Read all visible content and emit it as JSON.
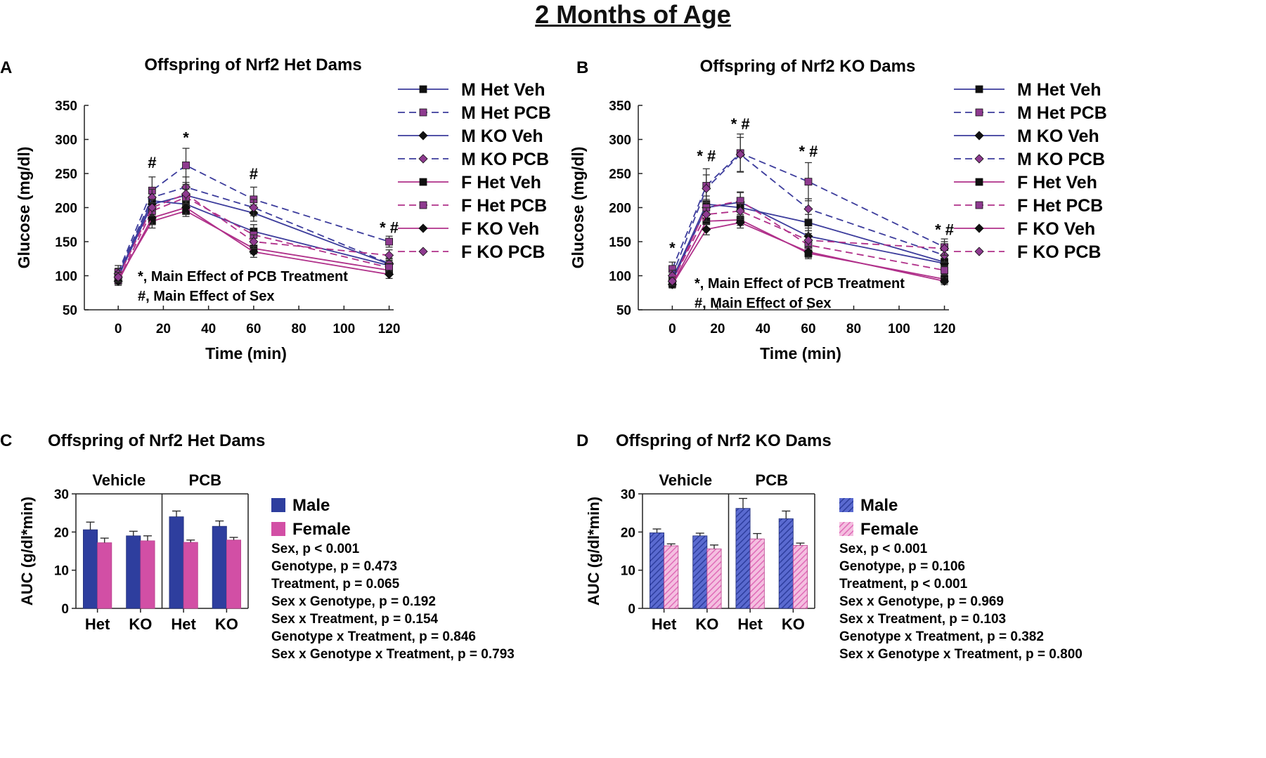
{
  "page_title": "2 Months of Age",
  "panels": {
    "A": {
      "letter": "A",
      "title": "Offspring of Nrf2 Het Dams",
      "notes": [
        "*, Main Effect of PCB Treatment",
        "#, Main Effect of Sex"
      ]
    },
    "B": {
      "letter": "B",
      "title": "Offspring of Nrf2 KO Dams",
      "notes": [
        "*, Main Effect of PCB Treatment",
        "#, Main Effect of Sex"
      ]
    },
    "C": {
      "letter": "C",
      "title": "Offspring of Nrf2 Het Dams"
    },
    "D": {
      "letter": "D",
      "title": "Offspring of Nrf2 KO Dams"
    }
  },
  "colors": {
    "male_blue": "#2e3e9e",
    "male_line": "#3c3c9c",
    "female_magenta": "#d24fa5",
    "female_line": "#b0308a",
    "marker_dark": "#111111",
    "marker_purple": "#8e3a8f"
  },
  "chart_data": [
    {
      "panel": "A",
      "type": "line",
      "title": "Offspring of Nrf2 Het Dams",
      "xlabel": "Time (min)",
      "ylabel": "Glucose (mg/dl)",
      "x": [
        0,
        15,
        30,
        60,
        120
      ],
      "xticks": [
        0,
        20,
        40,
        60,
        80,
        100,
        120
      ],
      "yticks": [
        50,
        100,
        150,
        200,
        250,
        300,
        350
      ],
      "xlim": [
        -15,
        122
      ],
      "ylim": [
        50,
        350
      ],
      "series": [
        {
          "name": "M Het Veh",
          "sex": "M",
          "marker": "square",
          "dashed": false,
          "values": [
            100,
            210,
            205,
            165,
            115
          ],
          "err": [
            8,
            10,
            10,
            10,
            8
          ]
        },
        {
          "name": "M Het PCB",
          "sex": "M",
          "marker": "square",
          "dashed": true,
          "values": [
            105,
            225,
            262,
            212,
            150
          ],
          "err": [
            10,
            20,
            25,
            18,
            8
          ]
        },
        {
          "name": "M KO Veh",
          "sex": "M",
          "marker": "diamond",
          "dashed": false,
          "values": [
            98,
            205,
            218,
            192,
            117
          ],
          "err": [
            8,
            12,
            14,
            12,
            8
          ]
        },
        {
          "name": "M KO PCB",
          "sex": "M",
          "marker": "diamond",
          "dashed": true,
          "values": [
            103,
            215,
            230,
            200,
            118
          ],
          "err": [
            8,
            12,
            15,
            12,
            8
          ]
        },
        {
          "name": "F Het Veh",
          "sex": "F",
          "marker": "square",
          "dashed": false,
          "values": [
            95,
            180,
            195,
            140,
            108
          ],
          "err": [
            7,
            10,
            8,
            8,
            6
          ]
        },
        {
          "name": "F Het PCB",
          "sex": "F",
          "marker": "square",
          "dashed": true,
          "values": [
            93,
            195,
            215,
            160,
            112
          ],
          "err": [
            7,
            12,
            12,
            10,
            6
          ]
        },
        {
          "name": "F KO Veh",
          "sex": "F",
          "marker": "diamond",
          "dashed": false,
          "values": [
            92,
            185,
            200,
            135,
            102
          ],
          "err": [
            6,
            10,
            10,
            8,
            6
          ]
        },
        {
          "name": "F KO PCB",
          "sex": "F",
          "marker": "diamond",
          "dashed": true,
          "values": [
            98,
            200,
            220,
            150,
            130
          ],
          "err": [
            7,
            12,
            14,
            10,
            8
          ]
        }
      ],
      "significance": [
        {
          "x": 15,
          "y": 258,
          "label": "#"
        },
        {
          "x": 30,
          "y": 295,
          "label": "*"
        },
        {
          "x": 60,
          "y": 242,
          "label": "#"
        },
        {
          "x": 120,
          "y": 163,
          "label": "* #"
        }
      ]
    },
    {
      "panel": "B",
      "type": "line",
      "title": "Offspring of Nrf2 KO Dams",
      "xlabel": "Time (min)",
      "ylabel": "Glucose (mg/dl)",
      "x": [
        0,
        15,
        30,
        60,
        120
      ],
      "xticks": [
        0,
        20,
        40,
        60,
        80,
        100,
        120
      ],
      "yticks": [
        50,
        100,
        150,
        200,
        250,
        300,
        350
      ],
      "xlim": [
        -15,
        122
      ],
      "ylim": [
        50,
        350
      ],
      "series": [
        {
          "name": "M Het Veh",
          "sex": "M",
          "marker": "square",
          "dashed": false,
          "values": [
            95,
            205,
            200,
            178,
            120
          ],
          "err": [
            8,
            12,
            12,
            12,
            8
          ]
        },
        {
          "name": "M Het PCB",
          "sex": "M",
          "marker": "square",
          "dashed": true,
          "values": [
            110,
            232,
            280,
            238,
            142
          ],
          "err": [
            10,
            25,
            28,
            28,
            12
          ]
        },
        {
          "name": "M KO Veh",
          "sex": "M",
          "marker": "diamond",
          "dashed": false,
          "values": [
            92,
            200,
            208,
            158,
            118
          ],
          "err": [
            7,
            12,
            15,
            12,
            8
          ]
        },
        {
          "name": "M KO PCB",
          "sex": "M",
          "marker": "diamond",
          "dashed": true,
          "values": [
            100,
            228,
            278,
            198,
            130
          ],
          "err": [
            8,
            20,
            25,
            15,
            10
          ]
        },
        {
          "name": "F Het Veh",
          "sex": "F",
          "marker": "square",
          "dashed": false,
          "values": [
            88,
            180,
            182,
            133,
            95
          ],
          "err": [
            5,
            10,
            8,
            8,
            6
          ]
        },
        {
          "name": "F Het PCB",
          "sex": "F",
          "marker": "square",
          "dashed": true,
          "values": [
            90,
            200,
            210,
            145,
            108
          ],
          "err": [
            6,
            10,
            12,
            8,
            6
          ]
        },
        {
          "name": "F KO Veh",
          "sex": "F",
          "marker": "diamond",
          "dashed": false,
          "values": [
            87,
            168,
            178,
            135,
            92
          ],
          "err": [
            5,
            8,
            8,
            8,
            5
          ]
        },
        {
          "name": "F KO PCB",
          "sex": "F",
          "marker": "diamond",
          "dashed": true,
          "values": [
            92,
            190,
            195,
            152,
            140
          ],
          "err": [
            6,
            10,
            12,
            10,
            10
          ]
        }
      ],
      "significance": [
        {
          "x": 0,
          "y": 133,
          "label": "*"
        },
        {
          "x": 15,
          "y": 268,
          "label": "* #"
        },
        {
          "x": 30,
          "y": 315,
          "label": "* #"
        },
        {
          "x": 60,
          "y": 275,
          "label": "* #"
        },
        {
          "x": 120,
          "y": 160,
          "label": "* #"
        }
      ]
    },
    {
      "panel": "C",
      "type": "bar",
      "title": "Offspring of Nrf2 Het Dams",
      "ylabel": "AUC (g/dl*min)",
      "groups": [
        "Vehicle",
        "PCB"
      ],
      "categories": [
        "Het",
        "KO",
        "Het",
        "KO"
      ],
      "ylim": [
        0,
        30
      ],
      "yticks": [
        0,
        10,
        20,
        30
      ],
      "hatched": false,
      "series": [
        {
          "name": "Male",
          "values": [
            20.6,
            19.0,
            24.0,
            21.5
          ],
          "err": [
            2.0,
            1.2,
            1.5,
            1.4
          ]
        },
        {
          "name": "Female",
          "values": [
            17.2,
            17.7,
            17.3,
            17.9
          ],
          "err": [
            1.2,
            1.3,
            0.6,
            0.7
          ]
        }
      ],
      "stats": [
        "Sex, p < 0.001",
        "Genotype, p = 0.473",
        "Treatment, p = 0.065",
        "Sex x Genotype, p = 0.192",
        "Sex x Treatment, p = 0.154",
        "Genotype x Treatment, p = 0.846",
        "Sex x Genotype x Treatment, p = 0.793"
      ]
    },
    {
      "panel": "D",
      "type": "bar",
      "title": "Offspring of Nrf2 KO Dams",
      "ylabel": "AUC (g/dl*min)",
      "groups": [
        "Vehicle",
        "PCB"
      ],
      "categories": [
        "Het",
        "KO",
        "Het",
        "KO"
      ],
      "ylim": [
        0,
        30
      ],
      "yticks": [
        0,
        10,
        20,
        30
      ],
      "hatched": true,
      "series": [
        {
          "name": "Male",
          "values": [
            19.8,
            19.0,
            26.2,
            23.5
          ],
          "err": [
            1.0,
            0.7,
            2.6,
            2.0
          ]
        },
        {
          "name": "Female",
          "values": [
            16.4,
            15.6,
            18.2,
            16.5
          ],
          "err": [
            0.5,
            1.0,
            1.4,
            0.6
          ]
        }
      ],
      "stats": [
        "Sex, p < 0.001",
        "Genotype, p = 0.106",
        "Treatment, p < 0.001",
        "Sex x Genotype, p = 0.969",
        "Sex x Treatment, p = 0.103",
        "Genotype x Treatment, p = 0.382",
        "Sex x Genotype x Treatment, p = 0.800"
      ]
    }
  ]
}
